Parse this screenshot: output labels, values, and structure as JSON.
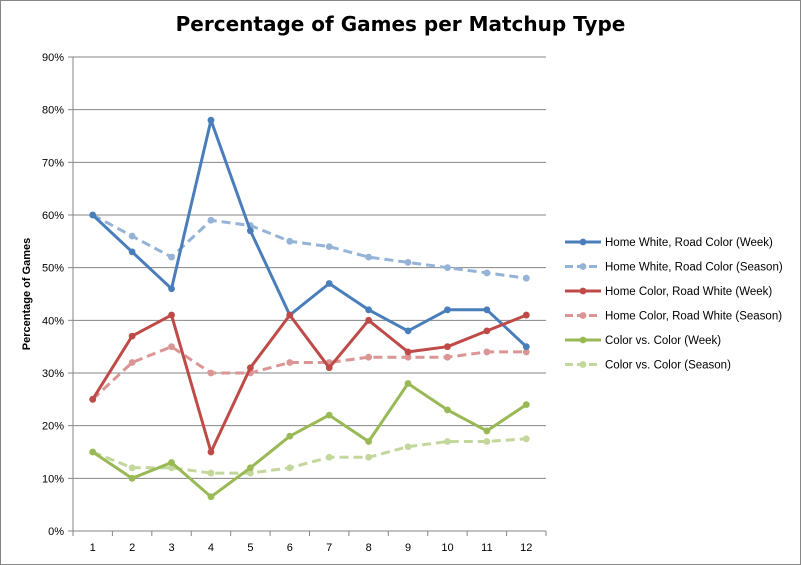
{
  "chart_data": {
    "type": "line",
    "title": "Percentage of Games per Matchup Type",
    "xlabel": "",
    "ylabel": "Percentage of Games",
    "categories": [
      "1",
      "2",
      "3",
      "4",
      "5",
      "6",
      "7",
      "8",
      "9",
      "10",
      "11",
      "12"
    ],
    "y_ticks": [
      "0%",
      "10%",
      "20%",
      "30%",
      "40%",
      "50%",
      "60%",
      "70%",
      "80%",
      "90%"
    ],
    "ylim": [
      0,
      90
    ],
    "grid": "horizontal",
    "legend_position": "right",
    "series": [
      {
        "name": "Home White, Road Color (Week)",
        "color": "#4A7EBB",
        "dashed": false,
        "values": [
          60,
          53,
          46,
          78,
          57,
          41,
          47,
          42,
          38,
          42,
          42,
          35
        ]
      },
      {
        "name": "Home White, Road Color (Season)",
        "color": "#95B3D7",
        "dashed": true,
        "values": [
          60,
          56,
          52,
          59,
          58,
          55,
          54,
          52,
          51,
          50,
          49,
          48
        ]
      },
      {
        "name": "Home Color, Road White (Week)",
        "color": "#BE4B48",
        "dashed": false,
        "values": [
          25,
          37,
          41,
          15,
          31,
          41,
          31,
          40,
          34,
          35,
          38,
          41
        ]
      },
      {
        "name": "Home Color, Road White (Season)",
        "color": "#DA9694",
        "dashed": true,
        "values": [
          25,
          32,
          35,
          30,
          30,
          32,
          32,
          33,
          33,
          33,
          34,
          34
        ]
      },
      {
        "name": "Color vs. Color (Week)",
        "color": "#98B954",
        "dashed": false,
        "values": [
          15,
          10,
          13,
          6.5,
          12,
          18,
          22,
          17,
          28,
          23,
          19,
          24
        ]
      },
      {
        "name": "Color vs. Color (Season)",
        "color": "#C3D69B",
        "dashed": true,
        "values": [
          15,
          12,
          12,
          11,
          11,
          12,
          14,
          14,
          16,
          17,
          17,
          17.5
        ]
      }
    ]
  }
}
